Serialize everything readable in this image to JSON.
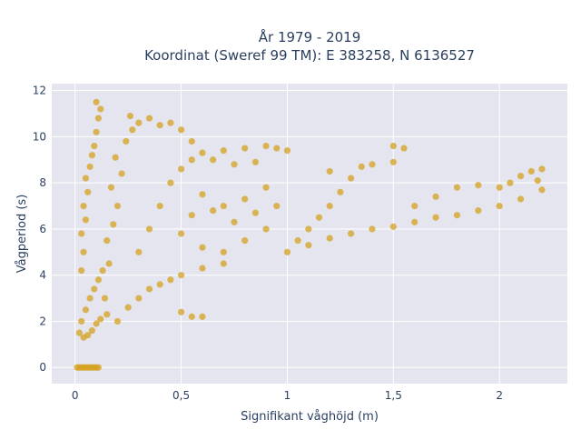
{
  "chart_data": {
    "type": "scatter",
    "title": [
      "År 1979 - 2019",
      "Koordinat (Sweref 99 TM): E 383258, N 6136527"
    ],
    "xlabel": "Signifikant våghöjd (m)",
    "ylabel": "Vågperiod (s)",
    "xlim": [
      -0.11,
      2.32
    ],
    "ylim": [
      -0.7,
      12.3
    ],
    "x_ticks": [
      0,
      0.5,
      1,
      1.5,
      2
    ],
    "x_tick_labels": [
      "0",
      "0,5",
      "1",
      "1,5",
      "2"
    ],
    "y_ticks": [
      0,
      2,
      4,
      6,
      8,
      10,
      12
    ],
    "y_tick_labels": [
      "0",
      "2",
      "4",
      "6",
      "8",
      "10",
      "12"
    ],
    "grid": true,
    "marker_color": "#d4a21f",
    "marker_opacity": 0.75,
    "plot_background": "#e5e5ef",
    "series": [
      {
        "points": [
          [
            0.01,
            0
          ],
          [
            0.02,
            0
          ],
          [
            0.03,
            0
          ],
          [
            0.04,
            0
          ],
          [
            0.05,
            0
          ],
          [
            0.06,
            0
          ],
          [
            0.07,
            0
          ],
          [
            0.08,
            0
          ],
          [
            0.09,
            0
          ],
          [
            0.1,
            0
          ],
          [
            0.11,
            0
          ],
          [
            0.02,
            1.5
          ],
          [
            0.04,
            1.3
          ],
          [
            0.06,
            1.4
          ],
          [
            0.08,
            1.6
          ],
          [
            0.1,
            1.9
          ],
          [
            0.12,
            2.1
          ],
          [
            0.15,
            2.3
          ],
          [
            0.03,
            2.0
          ],
          [
            0.05,
            2.5
          ],
          [
            0.07,
            3.0
          ],
          [
            0.09,
            3.4
          ],
          [
            0.11,
            3.8
          ],
          [
            0.13,
            4.2
          ],
          [
            0.03,
            4.2
          ],
          [
            0.04,
            5.0
          ],
          [
            0.03,
            5.8
          ],
          [
            0.05,
            6.4
          ],
          [
            0.04,
            7.0
          ],
          [
            0.06,
            7.6
          ],
          [
            0.05,
            8.2
          ],
          [
            0.07,
            8.7
          ],
          [
            0.08,
            9.2
          ],
          [
            0.09,
            9.6
          ],
          [
            0.1,
            10.2
          ],
          [
            0.11,
            10.8
          ],
          [
            0.12,
            11.2
          ],
          [
            0.1,
            11.5
          ],
          [
            0.14,
            3.0
          ],
          [
            0.16,
            4.5
          ],
          [
            0.15,
            5.5
          ],
          [
            0.18,
            6.2
          ],
          [
            0.2,
            7.0
          ],
          [
            0.17,
            7.8
          ],
          [
            0.22,
            8.4
          ],
          [
            0.19,
            9.1
          ],
          [
            0.24,
            9.8
          ],
          [
            0.27,
            10.3
          ],
          [
            0.3,
            10.6
          ],
          [
            0.26,
            10.9
          ],
          [
            0.2,
            2.0
          ],
          [
            0.25,
            2.6
          ],
          [
            0.3,
            3.0
          ],
          [
            0.35,
            3.4
          ],
          [
            0.4,
            3.6
          ],
          [
            0.45,
            3.8
          ],
          [
            0.5,
            2.4
          ],
          [
            0.55,
            2.2
          ],
          [
            0.6,
            2.2
          ],
          [
            0.5,
            4.0
          ],
          [
            0.6,
            4.3
          ],
          [
            0.7,
            4.5
          ],
          [
            0.3,
            5.0
          ],
          [
            0.35,
            6.0
          ],
          [
            0.4,
            7.0
          ],
          [
            0.45,
            8.0
          ],
          [
            0.5,
            8.6
          ],
          [
            0.55,
            9.0
          ],
          [
            0.6,
            9.3
          ],
          [
            0.7,
            9.4
          ],
          [
            0.8,
            9.5
          ],
          [
            0.9,
            9.6
          ],
          [
            0.95,
            9.5
          ],
          [
            1.0,
            9.4
          ],
          [
            0.4,
            10.5
          ],
          [
            0.45,
            10.6
          ],
          [
            0.5,
            10.3
          ],
          [
            0.35,
            10.8
          ],
          [
            0.55,
            9.8
          ],
          [
            0.65,
            9.0
          ],
          [
            0.75,
            8.8
          ],
          [
            0.85,
            8.9
          ],
          [
            0.6,
            7.5
          ],
          [
            0.7,
            7.0
          ],
          [
            0.8,
            7.3
          ],
          [
            0.9,
            7.8
          ],
          [
            1.0,
            5.0
          ],
          [
            1.05,
            5.5
          ],
          [
            1.1,
            6.0
          ],
          [
            1.15,
            6.5
          ],
          [
            1.2,
            7.0
          ],
          [
            1.25,
            7.6
          ],
          [
            1.3,
            8.2
          ],
          [
            1.2,
            8.5
          ],
          [
            1.35,
            8.7
          ],
          [
            1.4,
            8.8
          ],
          [
            1.5,
            8.9
          ],
          [
            1.55,
            9.5
          ],
          [
            1.5,
            9.6
          ],
          [
            1.1,
            5.3
          ],
          [
            1.2,
            5.6
          ],
          [
            1.3,
            5.8
          ],
          [
            1.4,
            6.0
          ],
          [
            1.5,
            6.1
          ],
          [
            1.6,
            6.3
          ],
          [
            1.7,
            6.5
          ],
          [
            1.8,
            6.6
          ],
          [
            1.9,
            6.8
          ],
          [
            2.0,
            7.0
          ],
          [
            2.1,
            7.3
          ],
          [
            2.2,
            7.7
          ],
          [
            1.6,
            7.0
          ],
          [
            1.7,
            7.4
          ],
          [
            1.8,
            7.8
          ],
          [
            1.9,
            7.9
          ],
          [
            2.0,
            7.8
          ],
          [
            2.05,
            8.0
          ],
          [
            2.1,
            8.3
          ],
          [
            2.15,
            8.5
          ],
          [
            2.2,
            8.6
          ],
          [
            2.18,
            8.1
          ],
          [
            0.9,
            6.0
          ],
          [
            0.8,
            5.5
          ],
          [
            0.7,
            5.0
          ],
          [
            0.6,
            5.2
          ],
          [
            0.5,
            5.8
          ],
          [
            0.55,
            6.6
          ],
          [
            0.65,
            6.8
          ],
          [
            0.75,
            6.3
          ],
          [
            0.85,
            6.7
          ],
          [
            0.95,
            7.0
          ]
        ]
      }
    ]
  }
}
